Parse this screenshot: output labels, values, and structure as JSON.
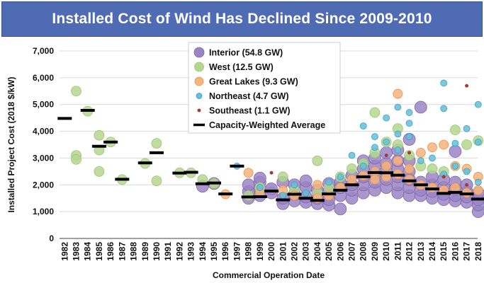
{
  "chart_data": {
    "type": "scatter",
    "title": "Installed Cost of Wind Has Declined Since 2009-2010",
    "xlabel": "Commercial Operation Date",
    "ylabel": "Installed Project Cost (2018 $/kW)",
    "ylim": [
      0,
      7000
    ],
    "yticks": [
      "0",
      "1,000",
      "2,000",
      "3,000",
      "4,000",
      "5,000",
      "6,000",
      "7,000"
    ],
    "xlim": [
      1982,
      2018
    ],
    "xticks": [
      "1982",
      "1983",
      "1984",
      "1985",
      "1986",
      "1987",
      "1988",
      "1989",
      "1990",
      "1991",
      "1992",
      "1993",
      "1994",
      "1995",
      "1996",
      "1997",
      "1998",
      "1999",
      "2000",
      "2001",
      "2002",
      "2003",
      "2004",
      "2005",
      "2006",
      "2007",
      "2008",
      "2009",
      "2010",
      "2011",
      "2012",
      "2013",
      "2014",
      "2015",
      "2016",
      "2017",
      "2018"
    ],
    "grid": "horizontal",
    "legend_placement": "top-center",
    "series": [
      {
        "name": "Interior (54.8 GW)",
        "color": "#9a85c4",
        "points": [
          [
            1994,
            1950
          ],
          [
            1995,
            2050
          ],
          [
            1998,
            1500
          ],
          [
            1998,
            1750
          ],
          [
            1998,
            2000
          ],
          [
            1999,
            1600
          ],
          [
            1999,
            1850
          ],
          [
            1999,
            2100
          ],
          [
            1999,
            2250
          ],
          [
            2000,
            1700
          ],
          [
            2000,
            1850
          ],
          [
            2001,
            1300
          ],
          [
            2001,
            1500
          ],
          [
            2001,
            2100
          ],
          [
            2002,
            1400
          ],
          [
            2002,
            1650
          ],
          [
            2002,
            2000
          ],
          [
            2003,
            1350
          ],
          [
            2003,
            1550
          ],
          [
            2003,
            1900
          ],
          [
            2003,
            2150
          ],
          [
            2004,
            1300
          ],
          [
            2004,
            1500
          ],
          [
            2004,
            1800
          ],
          [
            2005,
            1250
          ],
          [
            2005,
            1450
          ],
          [
            2005,
            1750
          ],
          [
            2005,
            2050
          ],
          [
            2006,
            1100
          ],
          [
            2006,
            1600
          ],
          [
            2006,
            1900
          ],
          [
            2006,
            2100
          ],
          [
            2007,
            1500
          ],
          [
            2007,
            1800
          ],
          [
            2007,
            2000
          ],
          [
            2007,
            2350
          ],
          [
            2008,
            1700
          ],
          [
            2008,
            2000
          ],
          [
            2008,
            2300
          ],
          [
            2008,
            2600
          ],
          [
            2008,
            2900
          ],
          [
            2009,
            1800
          ],
          [
            2009,
            2100
          ],
          [
            2009,
            2400
          ],
          [
            2009,
            2700
          ],
          [
            2009,
            3000
          ],
          [
            2010,
            1900
          ],
          [
            2010,
            2200
          ],
          [
            2010,
            2500
          ],
          [
            2010,
            2800
          ],
          [
            2010,
            3200
          ],
          [
            2011,
            1700
          ],
          [
            2011,
            2000
          ],
          [
            2011,
            2300
          ],
          [
            2011,
            2600
          ],
          [
            2011,
            2900
          ],
          [
            2011,
            3300
          ],
          [
            2012,
            1600
          ],
          [
            2012,
            1900
          ],
          [
            2012,
            2200
          ],
          [
            2012,
            2500
          ],
          [
            2012,
            2900
          ],
          [
            2012,
            3700
          ],
          [
            2013,
            1600
          ],
          [
            2013,
            1800
          ],
          [
            2013,
            2100
          ],
          [
            2013,
            4900
          ],
          [
            2014,
            1500
          ],
          [
            2014,
            1750
          ],
          [
            2014,
            2000
          ],
          [
            2014,
            2300
          ],
          [
            2015,
            1450
          ],
          [
            2015,
            1650
          ],
          [
            2015,
            1900
          ],
          [
            2015,
            2200
          ],
          [
            2016,
            1400
          ],
          [
            2016,
            1600
          ],
          [
            2016,
            1850
          ],
          [
            2016,
            2100
          ],
          [
            2016,
            3250
          ],
          [
            2017,
            1350
          ],
          [
            2017,
            1550
          ],
          [
            2017,
            1750
          ],
          [
            2017,
            2000
          ],
          [
            2018,
            1000
          ],
          [
            2018,
            1250
          ],
          [
            2018,
            1450
          ],
          [
            2018,
            1700
          ]
        ]
      },
      {
        "name": "West (12.5 GW)",
        "color": "#b4d78e",
        "points": [
          [
            1983,
            5500
          ],
          [
            1983,
            3100
          ],
          [
            1983,
            2950
          ],
          [
            1984,
            4750
          ],
          [
            1985,
            3850
          ],
          [
            1985,
            3300
          ],
          [
            1985,
            2500
          ],
          [
            1986,
            3600
          ],
          [
            1987,
            2200
          ],
          [
            1989,
            2800
          ],
          [
            1990,
            3550
          ],
          [
            1990,
            2150
          ],
          [
            1992,
            2450
          ],
          [
            1993,
            2450
          ],
          [
            1994,
            2200
          ],
          [
            1995,
            2050
          ],
          [
            1998,
            1600
          ],
          [
            1999,
            1900
          ],
          [
            2001,
            2300
          ],
          [
            2002,
            1800
          ],
          [
            2004,
            2900
          ],
          [
            2004,
            1700
          ],
          [
            2005,
            1900
          ],
          [
            2006,
            2300
          ],
          [
            2007,
            2600
          ],
          [
            2008,
            2800
          ],
          [
            2009,
            4700
          ],
          [
            2009,
            3200
          ],
          [
            2010,
            3600
          ],
          [
            2011,
            4100
          ],
          [
            2011,
            3500
          ],
          [
            2012,
            3100
          ],
          [
            2013,
            2700
          ],
          [
            2014,
            2600
          ],
          [
            2015,
            2500
          ],
          [
            2016,
            4050
          ],
          [
            2017,
            3500
          ],
          [
            2018,
            3650
          ]
        ]
      },
      {
        "name": "Great Lakes (9.3 GW)",
        "color": "#f6b47c",
        "points": [
          [
            1996,
            1650
          ],
          [
            1998,
            2450
          ],
          [
            1999,
            1700
          ],
          [
            2001,
            1800
          ],
          [
            2002,
            1600
          ],
          [
            2004,
            1500
          ],
          [
            2004,
            2000
          ],
          [
            2005,
            1600
          ],
          [
            2006,
            1900
          ],
          [
            2007,
            2200
          ],
          [
            2008,
            2350
          ],
          [
            2009,
            2500
          ],
          [
            2009,
            2200
          ],
          [
            2010,
            2700
          ],
          [
            2010,
            2300
          ],
          [
            2011,
            5400
          ],
          [
            2011,
            2900
          ],
          [
            2011,
            2400
          ],
          [
            2012,
            2600
          ],
          [
            2012,
            2200
          ],
          [
            2013,
            3200
          ],
          [
            2013,
            2000
          ],
          [
            2014,
            3400
          ],
          [
            2014,
            1900
          ],
          [
            2015,
            3500
          ],
          [
            2015,
            1800
          ],
          [
            2016,
            2700
          ],
          [
            2016,
            1900
          ],
          [
            2017,
            2600
          ],
          [
            2017,
            1700
          ],
          [
            2018,
            2300
          ],
          [
            2018,
            1800
          ]
        ]
      },
      {
        "name": "Northeast (4.7 GW)",
        "color": "#63bfdb",
        "points": [
          [
            1997,
            2700
          ],
          [
            1999,
            1900
          ],
          [
            2001,
            1600
          ],
          [
            2002,
            2000
          ],
          [
            2003,
            1700
          ],
          [
            2005,
            2100
          ],
          [
            2006,
            2300
          ],
          [
            2007,
            3100
          ],
          [
            2008,
            2700
          ],
          [
            2008,
            4200
          ],
          [
            2009,
            3800
          ],
          [
            2009,
            3400
          ],
          [
            2010,
            4500
          ],
          [
            2010,
            3600
          ],
          [
            2011,
            4900
          ],
          [
            2011,
            3900
          ],
          [
            2011,
            3300
          ],
          [
            2012,
            4700
          ],
          [
            2012,
            4300
          ],
          [
            2012,
            3800
          ],
          [
            2013,
            2900
          ],
          [
            2014,
            3000
          ],
          [
            2015,
            5800
          ],
          [
            2015,
            4850
          ],
          [
            2015,
            2400
          ],
          [
            2016,
            3550
          ],
          [
            2016,
            2700
          ],
          [
            2017,
            4100
          ],
          [
            2017,
            2500
          ],
          [
            2018,
            5000
          ],
          [
            2018,
            3600
          ],
          [
            2018,
            2100
          ]
        ]
      },
      {
        "name": "Southeast (1.1 GW)",
        "color": "#a43c36",
        "points": [
          [
            2000,
            2450
          ],
          [
            2010,
            3100
          ],
          [
            2012,
            3200
          ],
          [
            2015,
            2300
          ],
          [
            2017,
            5700
          ],
          [
            2017,
            2000
          ]
        ]
      }
    ],
    "weighted_average": {
      "name": "Capacity-Weighted Average",
      "color": "#000000",
      "points": [
        [
          1982,
          4480
        ],
        [
          1984,
          4780
        ],
        [
          1985,
          3440
        ],
        [
          1986,
          3600
        ],
        [
          1987,
          2210
        ],
        [
          1989,
          2820
        ],
        [
          1990,
          3200
        ],
        [
          1992,
          2440
        ],
        [
          1993,
          2470
        ],
        [
          1994,
          2040
        ],
        [
          1995,
          2070
        ],
        [
          1996,
          1660
        ],
        [
          1997,
          2700
        ],
        [
          1998,
          1550
        ],
        [
          1999,
          1560
        ],
        [
          2000,
          1770
        ],
        [
          2001,
          1440
        ],
        [
          2002,
          1650
        ],
        [
          2003,
          1500
        ],
        [
          2004,
          1420
        ],
        [
          2005,
          1660
        ],
        [
          2006,
          1800
        ],
        [
          2007,
          2000
        ],
        [
          2008,
          2300
        ],
        [
          2009,
          2460
        ],
        [
          2010,
          2450
        ],
        [
          2011,
          2360
        ],
        [
          2012,
          2150
        ],
        [
          2013,
          2000
        ],
        [
          2014,
          1850
        ],
        [
          2015,
          1680
        ],
        [
          2016,
          1720
        ],
        [
          2017,
          1660
        ],
        [
          2018,
          1470
        ]
      ]
    }
  }
}
